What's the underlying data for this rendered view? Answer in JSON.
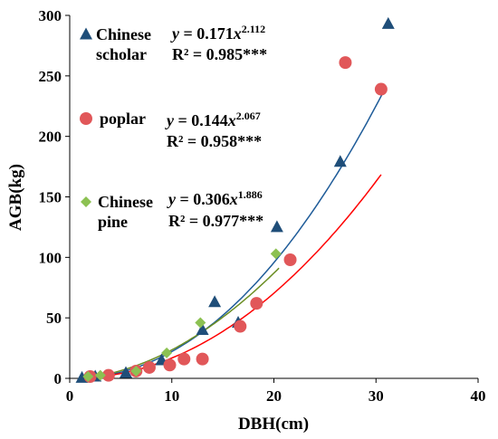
{
  "chart_data": {
    "type": "scatter",
    "xlabel": "DBH(cm)",
    "ylabel": "AGB(kg)",
    "xlim": [
      0,
      40
    ],
    "ylim": [
      0,
      300
    ],
    "x_ticks": [
      0,
      10,
      20,
      30,
      40
    ],
    "y_ticks": [
      0,
      50,
      100,
      150,
      200,
      250,
      300
    ],
    "grid": false,
    "legend_position": "top-left",
    "series": [
      {
        "name": "Chinese scholar",
        "name_lines": [
          "Chinese",
          "scholar"
        ],
        "marker": "triangle",
        "color": "#1f4e79",
        "fit_color": "#1f5c99",
        "eq_coef": "0.171",
        "eq_exp": "2.112",
        "r2": "R² = 0.985***",
        "fit": {
          "a": 0.171,
          "b": 2.112,
          "x_range": [
            1,
            31
          ]
        },
        "points": [
          {
            "x": 1.2,
            "y": 0.5
          },
          {
            "x": 2.5,
            "y": 1.5
          },
          {
            "x": 5.5,
            "y": 4.5
          },
          {
            "x": 9.0,
            "y": 15
          },
          {
            "x": 13.0,
            "y": 40
          },
          {
            "x": 14.2,
            "y": 63
          },
          {
            "x": 16.5,
            "y": 46
          },
          {
            "x": 20.3,
            "y": 125
          },
          {
            "x": 26.5,
            "y": 179
          },
          {
            "x": 31.2,
            "y": 293
          }
        ]
      },
      {
        "name": "poplar",
        "name_lines": [
          "poplar"
        ],
        "marker": "circle",
        "color": "#e15759",
        "fit_color": "#ff0000",
        "eq_coef": "0.144",
        "eq_exp": "2.067",
        "r2": "R² = 0.958***",
        "fit": {
          "a": 0.144,
          "b": 2.067,
          "x_range": [
            1,
            30.5
          ]
        },
        "points": [
          {
            "x": 2.0,
            "y": 1.5
          },
          {
            "x": 3.8,
            "y": 2.5
          },
          {
            "x": 6.5,
            "y": 6
          },
          {
            "x": 7.8,
            "y": 9
          },
          {
            "x": 9.8,
            "y": 11
          },
          {
            "x": 11.2,
            "y": 16
          },
          {
            "x": 13.0,
            "y": 16
          },
          {
            "x": 16.7,
            "y": 43
          },
          {
            "x": 18.3,
            "y": 62
          },
          {
            "x": 21.6,
            "y": 98
          },
          {
            "x": 27.0,
            "y": 261
          },
          {
            "x": 30.5,
            "y": 239
          }
        ]
      },
      {
        "name": "Chinese pine",
        "name_lines": [
          "Chinese",
          "pine"
        ],
        "marker": "diamond",
        "color": "#8cc152",
        "fit_color": "#6b8e23",
        "eq_coef": "0.306",
        "eq_exp": "1.886",
        "r2": "R² = 0.977***",
        "fit": {
          "a": 0.306,
          "b": 1.886,
          "x_range": [
            1,
            20.5
          ]
        },
        "points": [
          {
            "x": 1.8,
            "y": 1.5
          },
          {
            "x": 3.0,
            "y": 2.5
          },
          {
            "x": 6.5,
            "y": 6
          },
          {
            "x": 9.5,
            "y": 21
          },
          {
            "x": 12.8,
            "y": 46
          },
          {
            "x": 20.2,
            "y": 103
          }
        ]
      }
    ]
  }
}
